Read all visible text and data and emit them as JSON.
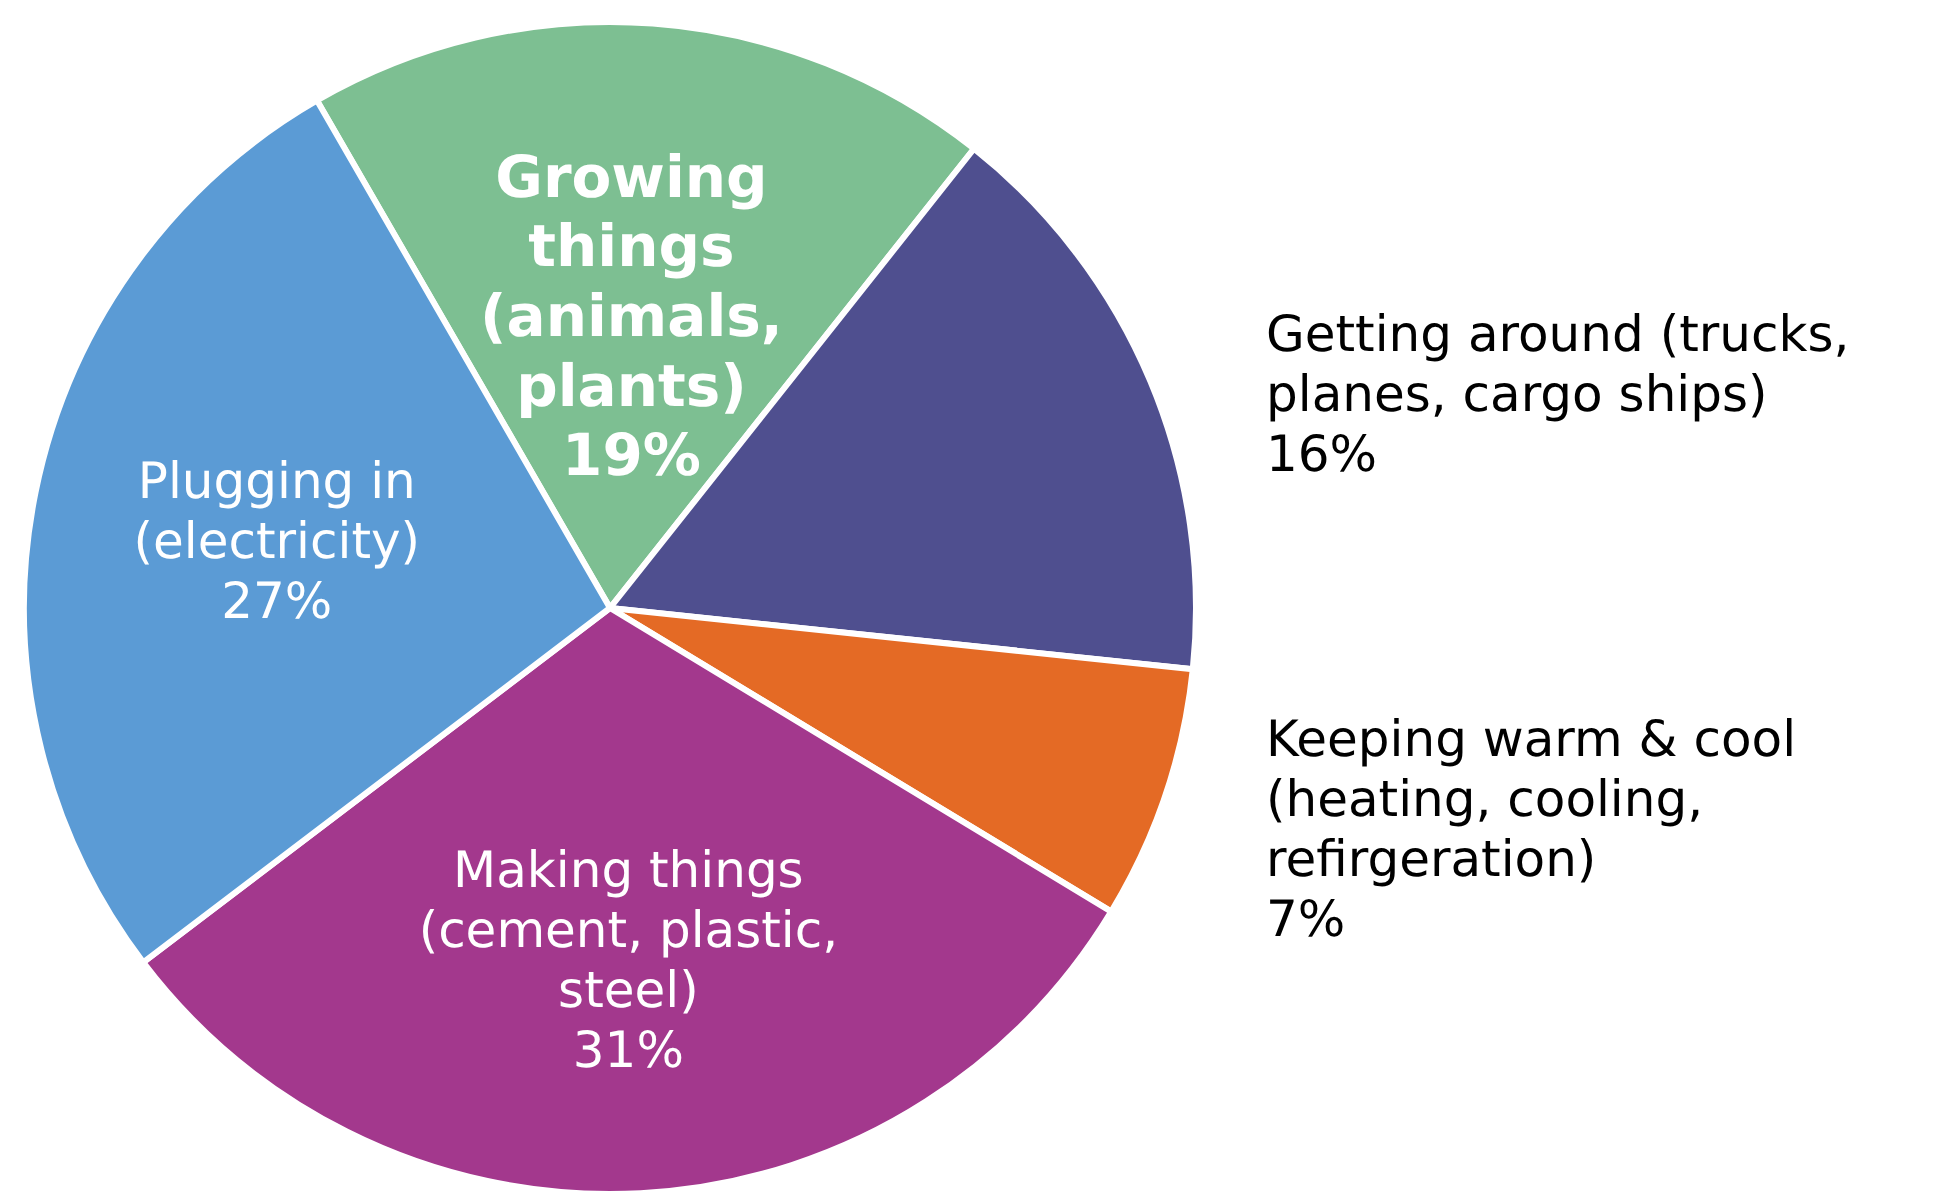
{
  "chart_data": {
    "type": "pie",
    "categories": [
      "Growing things (animals, plants)",
      "Getting around (trucks, planes, cargo ships)",
      "Keeping warm & cool (heating, cooling, refirgeration)",
      "Making things (cement, plastic, steel)",
      "Plugging in (electricity)"
    ],
    "values": [
      19,
      16,
      7,
      31,
      27
    ],
    "value_labels": [
      "19%",
      "16%",
      "7%",
      "31%",
      "27%"
    ],
    "colors": [
      "#7dbf92",
      "#4f4f8f",
      "#e46a25",
      "#a3388d",
      "#5b9bd5"
    ],
    "legend": false
  }
}
